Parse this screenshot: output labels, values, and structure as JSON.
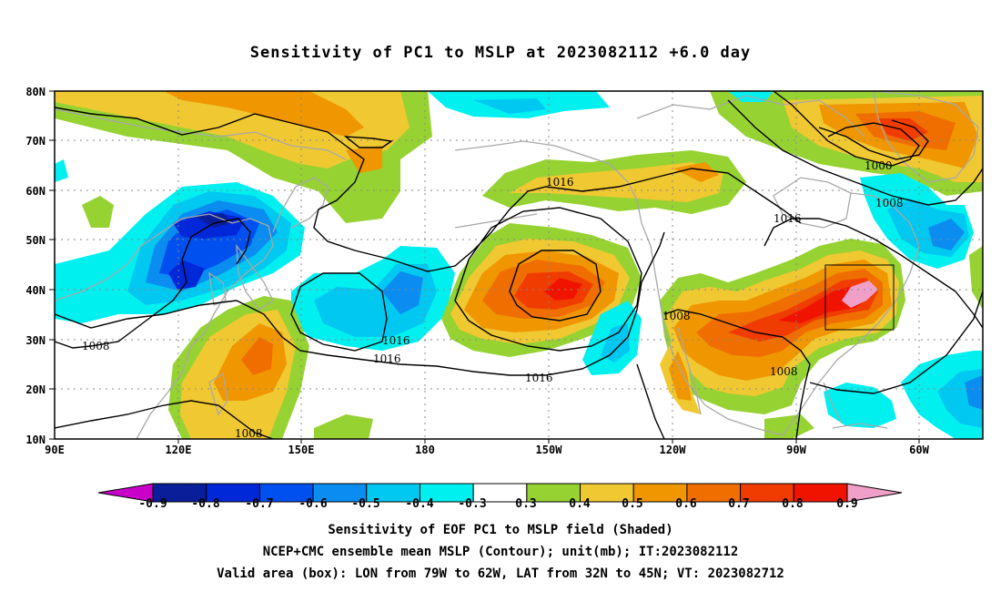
{
  "title": "Sensitivity of PC1 to MSLP at 2023082112 +6.0 day",
  "map": {
    "lat_labels": [
      "80N",
      "70N",
      "60N",
      "50N",
      "40N",
      "30N",
      "20N",
      "10N"
    ],
    "lon_labels": [
      "90E",
      "120E",
      "150E",
      "180",
      "150W",
      "120W",
      "90W",
      "60W"
    ],
    "contour_labels": [
      "1000",
      "1008",
      "1016",
      "1016",
      "1016",
      "1016",
      "1016",
      "1008",
      "1008",
      "1008",
      "1008"
    ],
    "valid_box": {
      "lon_range": [
        "79W",
        "62W"
      ],
      "lat_range": [
        "32N",
        "45N"
      ]
    },
    "shading_colors": {
      "neg_09": "#c800c8",
      "neg_08": "#0a1e9a",
      "neg_07": "#0028d8",
      "neg_06": "#0050f0",
      "neg_05": "#0a8cf0",
      "neg_04": "#00c8f0",
      "neg_03": "#00f0f0",
      "pos_03": "#96d232",
      "pos_04": "#f0c832",
      "pos_05": "#f09600",
      "pos_06": "#f06e00",
      "pos_07": "#f03c00",
      "pos_08": "#f01400",
      "pos_09": "#f0a0c8"
    }
  },
  "colorbar": {
    "labels": [
      "-0.9",
      "-0.8",
      "-0.7",
      "-0.6",
      "-0.5",
      "-0.4",
      "-0.3",
      "0.3",
      "0.4",
      "0.5",
      "0.6",
      "0.7",
      "0.8",
      "0.9"
    ],
    "colors": [
      "#0a1e9a",
      "#0028d8",
      "#0050f0",
      "#0a8cf0",
      "#00c8f0",
      "#00f0f0",
      "#ffffff",
      "#96d232",
      "#f0c832",
      "#f09600",
      "#f06e00",
      "#f03c00",
      "#f01400"
    ],
    "left_end": "#c800c8",
    "right_end": "#f0a0c8"
  },
  "footer": {
    "line1": "Sensitivity of EOF PC1 to MSLP field (Shaded)",
    "line2": "NCEP+CMC ensemble mean MSLP (Contour); unit(mb); IT:2023082112",
    "line3": "Valid area (box): LON from 79W to 62W, LAT from 32N to 45N; VT: 2023082712"
  }
}
